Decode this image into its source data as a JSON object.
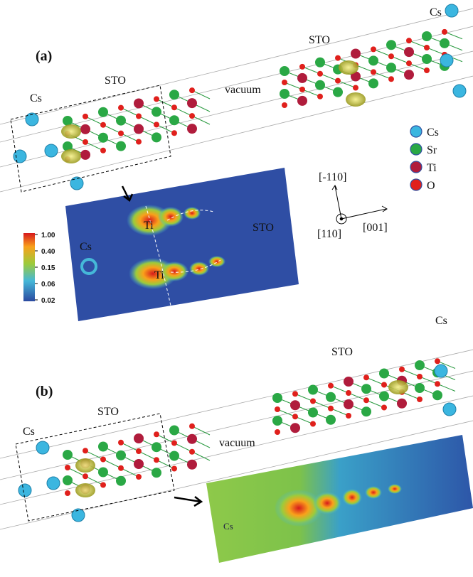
{
  "panel_a": {
    "label": "(a)",
    "labels": {
      "cs_left": "Cs",
      "cs_top": "Cs",
      "sto_left": "STO",
      "sto_right": "STO",
      "vacuum": "vacuum"
    },
    "inset": {
      "ti_upper": "Ti",
      "ti_lower": "Ti",
      "cs": "Cs",
      "sto": "STO"
    }
  },
  "legend": [
    {
      "label": "Cs",
      "color": "#3bb6e0"
    },
    {
      "label": "Sr",
      "color": "#2aa845"
    },
    {
      "label": "Ti",
      "color": "#b01c3c"
    },
    {
      "label": "O",
      "color": "#e0201c"
    }
  ],
  "axes": {
    "up": "[-110]",
    "out": "[110]",
    "right": "[001]"
  },
  "colorbar": {
    "ticks": [
      "1.00",
      "0.40",
      "0.15",
      "0.06",
      "0.02"
    ]
  },
  "panel_b": {
    "label": "(b)",
    "labels": {
      "cs_left": "Cs",
      "cs_top": "Cs",
      "sto_left": "STO",
      "sto_right": "STO",
      "vacuum": "vacuum"
    },
    "inset": {
      "cs": "Cs"
    }
  }
}
